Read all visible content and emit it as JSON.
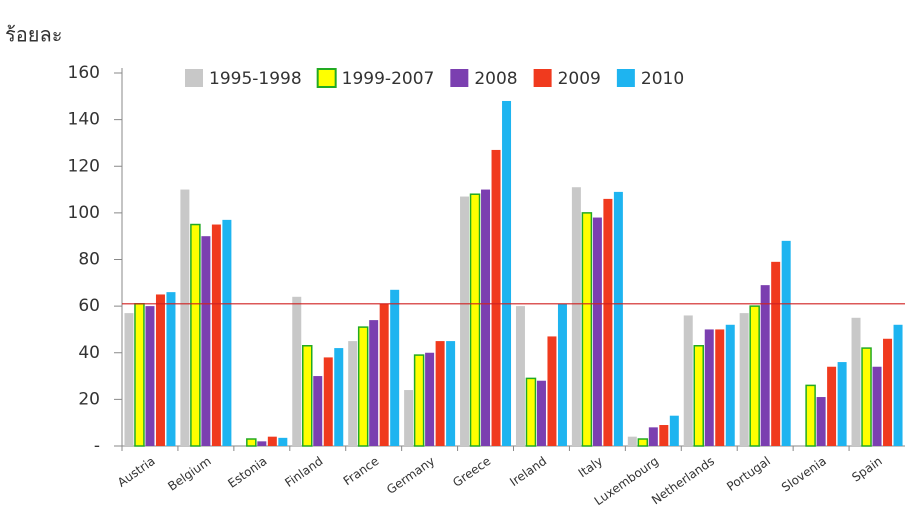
{
  "chart_data": {
    "type": "bar",
    "ylabel": "ร้อยละ",
    "categories": [
      "Austria",
      "Belgium",
      "Estonia",
      "Finland",
      "France",
      "Germany",
      "Greece",
      "Ireland",
      "Italy",
      "Luxembourg",
      "Netherlands",
      "Portugal",
      "Slovenia",
      "Spain"
    ],
    "series": [
      {
        "name": "1995-1998",
        "color": "#c8c8c8",
        "values": [
          57,
          110,
          null,
          64,
          45,
          24,
          107,
          60,
          111,
          4,
          56,
          57,
          null,
          55
        ]
      },
      {
        "name": "1999-2007",
        "color": "#ffff00",
        "edgecolor": "#22aa22",
        "values": [
          61,
          95,
          3,
          43,
          51,
          39,
          108,
          29,
          100,
          3,
          43,
          60,
          26,
          42
        ]
      },
      {
        "name": "2008",
        "color": "#7b3fb0",
        "values": [
          60,
          90,
          2,
          30,
          54,
          40,
          110,
          28,
          98,
          8,
          50,
          69,
          21,
          34
        ]
      },
      {
        "name": "2009",
        "color": "#f03a1e",
        "values": [
          65,
          95,
          4,
          38,
          61,
          45,
          127,
          47,
          106,
          9,
          50,
          79,
          34,
          46
        ]
      },
      {
        "name": "2010",
        "color": "#1eb4f0",
        "values": [
          66,
          97,
          3.5,
          42,
          67,
          45,
          148,
          61,
          109,
          13,
          52,
          88,
          36,
          52
        ]
      }
    ],
    "ylim": [
      0,
      160
    ],
    "yticks": [
      {
        "value": 0,
        "label": "-"
      },
      20,
      40,
      60,
      80,
      100,
      120,
      140,
      160
    ],
    "reference_line": 61,
    "reference_color": "#d02020"
  }
}
